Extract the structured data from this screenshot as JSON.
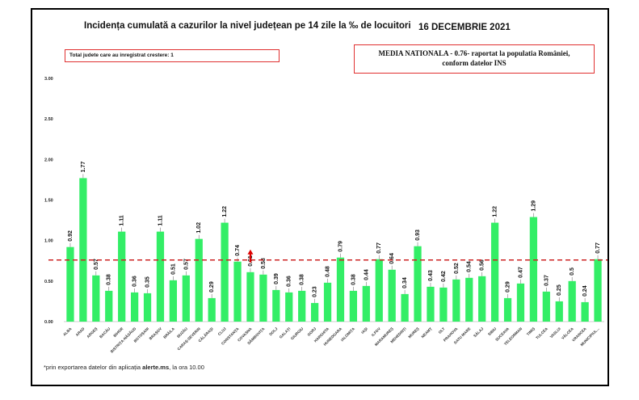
{
  "title": "Incidența cumulată a cazurilor la nivel județean pe 14 zile la ‰ de locuitori",
  "date": "16 DECEMBRIE 2021",
  "info_left": "Total judete care au inregistrat crestere: 1",
  "info_right_line1": "MEDIA NATIONALA - 0.76-  raportat la populatia României,",
  "info_right_line2": "conform datelor INS",
  "footnote_prefix": "*prin exportarea datelor din aplicația ",
  "footnote_bold": "alerte.ms",
  "footnote_suffix": ", la ora 10.00",
  "colors": {
    "bar": "#33ee66",
    "mean_line": "#cc2222",
    "arrow": "#dd0000",
    "grid": "#d9d9d9"
  },
  "chart_data": {
    "type": "bar",
    "categories": [
      "ALBA",
      "ARAD",
      "ARGEȘ",
      "BACĂU",
      "BIHOR",
      "BISTRIȚA-NĂSĂUD",
      "BOTOȘANI",
      "BRAȘOV",
      "BRĂILA",
      "BUZĂU",
      "CARAȘ-SEVERIN",
      "CĂLĂRAȘI",
      "CLUJ",
      "CONSTANȚA",
      "COVASNA",
      "DÂMBOVIȚA",
      "DOLJ",
      "GALAȚI",
      "GIURGIU",
      "GORJ",
      "HARGHITA",
      "HUNEDOARA",
      "IALOMIȚA",
      "IAȘI",
      "ILFOV",
      "MARAMUREȘ",
      "MEHEDINȚI",
      "MUREȘ",
      "NEAMȚ",
      "OLT",
      "PRAHOVA",
      "SATU MARE",
      "SĂLAJ",
      "SIBIU",
      "SUCEAVA",
      "TELEORMAN",
      "TIMIȘ",
      "TULCEA",
      "VASLUI",
      "VÂLCEA",
      "VRANCEA",
      "MUNICIPIUL..."
    ],
    "values": [
      0.92,
      1.77,
      0.57,
      0.38,
      1.11,
      0.36,
      0.35,
      1.11,
      0.51,
      0.57,
      1.02,
      0.29,
      1.22,
      0.74,
      0.61,
      0.58,
      0.39,
      0.36,
      0.38,
      0.23,
      0.48,
      0.79,
      0.38,
      0.44,
      0.77,
      0.64,
      0.34,
      0.93,
      0.43,
      0.42,
      0.52,
      0.54,
      0.56,
      1.22,
      0.29,
      0.47,
      1.29,
      0.37,
      0.25,
      0.5,
      0.24,
      0.77
    ],
    "value_labels": [
      "0.92",
      "1.77",
      "0.57",
      "0.38",
      "1.11",
      "0.36",
      "0.35",
      "1.11",
      "0.51",
      "0.57",
      "1.02",
      "0.29",
      "1.22",
      "0.74",
      "0.61",
      "0.58",
      "0.39",
      "0.36",
      "0.38",
      "0.23",
      "0.48",
      "0.79",
      "0.38",
      "0.44",
      "0.77",
      "0.64",
      "0.34",
      "0.93",
      "0.43",
      "0.42",
      "0.52",
      "0.54",
      "0.56",
      "1.22",
      "0.29",
      "0.47",
      "1.29",
      "0.37",
      "0.25",
      "0.5",
      "0.24",
      "0.77"
    ],
    "ylim": [
      0,
      3.0
    ],
    "yticks": [
      0.0,
      0.5,
      1.0,
      1.5,
      2.0,
      2.5,
      3.0
    ],
    "ytick_labels": [
      "0.00",
      "0.50",
      "1.00",
      "1.50",
      "2.00",
      "2.50",
      "3.00"
    ],
    "mean_line": 0.76,
    "increase_marker_category": "COVASNA",
    "xlabel": "",
    "ylabel": "",
    "grid": false
  }
}
